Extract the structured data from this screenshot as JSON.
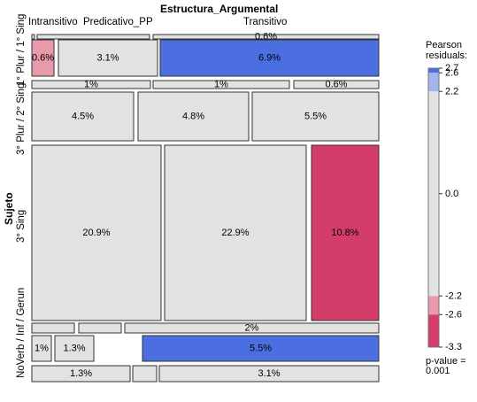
{
  "chart_data": {
    "type": "mosaic",
    "x_variable": "Estructura_Argumental",
    "y_variable": "Sujeto",
    "columns": [
      "Intransitivo",
      "Predicativo_PP",
      "Transitivo"
    ],
    "rows": [
      {
        "name": "1° Plur / 1° Sing",
        "strip": {
          "values": [
            "",
            "",
            "0.6%"
          ]
        },
        "cells": [
          {
            "value": "0.6%",
            "residual": -2.4
          },
          {
            "value": "3.1%",
            "residual": 0.0
          },
          {
            "value": "6.9%",
            "residual": 2.7
          }
        ]
      },
      {
        "name": "3° Plur / 2° Sing",
        "strip": {
          "values": [
            "1%",
            "1%",
            "0.6%"
          ]
        },
        "cells": [
          {
            "value": "4.5%",
            "residual": 0.0
          },
          {
            "value": "4.8%",
            "residual": 0.0
          },
          {
            "value": "5.5%",
            "residual": 0.0
          }
        ]
      },
      {
        "name": "3° Sing",
        "cells": [
          {
            "value": "20.9%",
            "residual": 0.0
          },
          {
            "value": "22.9%",
            "residual": 0.0
          },
          {
            "value": "10.8%",
            "residual": -3.3
          }
        ]
      },
      {
        "name": "NoVerb / Inf / Gerun",
        "strip": {
          "values": [
            "",
            "",
            "2%"
          ]
        },
        "cells": [
          {
            "value": "1%",
            "residual": 0.0
          },
          {
            "value": "1.3%",
            "residual": 0.0
          },
          {
            "value": "5.5%",
            "residual": 2.6
          }
        ]
      },
      {
        "name": "",
        "strip": {
          "values": [
            "1.3%",
            "",
            "3.1%"
          ]
        }
      }
    ],
    "legend": {
      "title_line1": "Pearson",
      "title_line2": "residuals:",
      "ticks": [
        "2.7",
        "2.6",
        "2.2",
        "0.0",
        "-2.2",
        "-2.6",
        "-3.3"
      ],
      "p_label": "p-value =",
      "p_value": "0.001",
      "colors": {
        "strong_pos": "#4b6fe0",
        "weak_pos": "#a3b3ec",
        "neutral": "#e2e2e2",
        "weak_neg": "#e69aaa",
        "strong_neg": "#d33d69"
      }
    }
  }
}
